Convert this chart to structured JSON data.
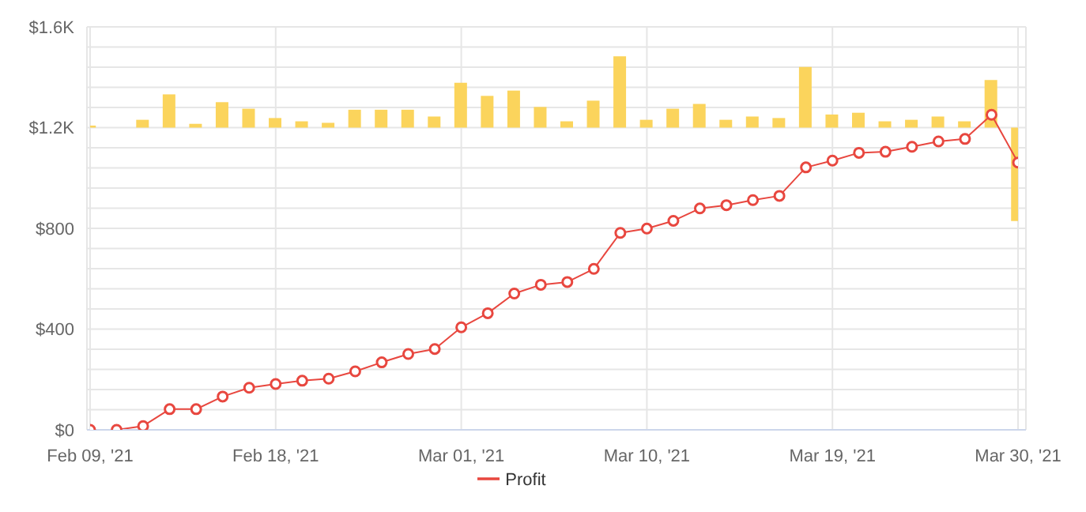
{
  "chart_data": {
    "type": "line",
    "categories": [
      "Feb 09, '21",
      null,
      null,
      null,
      null,
      null,
      null,
      "Feb 18, '21",
      null,
      null,
      null,
      null,
      null,
      null,
      "Mar 01, '21",
      null,
      null,
      null,
      null,
      null,
      null,
      "Mar 10, '21",
      null,
      null,
      null,
      null,
      null,
      null,
      "Mar 19, '21",
      null,
      null,
      null,
      null,
      null,
      null,
      "Mar 30, '21"
    ],
    "series": [
      {
        "type": "bar",
        "color": "#fbd45c",
        "base": [
          1200,
          null,
          1200,
          1200,
          1200,
          1200,
          1200,
          1200,
          1200,
          1200,
          1200,
          1200,
          1200,
          1200,
          1200,
          1200,
          1200,
          1200,
          1200,
          1200,
          1200,
          1200,
          1200,
          1200,
          1200,
          1200,
          1200,
          1200,
          1200,
          1200,
          1200,
          1200,
          1200,
          1200,
          1200,
          1200
        ],
        "values": [
          8,
          null,
          31,
          132,
          15,
          101,
          75,
          38,
          25,
          19,
          71,
          71,
          71,
          44,
          178,
          126,
          147,
          82,
          25,
          107,
          283,
          31,
          75,
          94,
          31,
          44,
          38,
          241,
          52,
          59,
          25,
          31,
          44,
          25,
          189,
          -371
        ]
      },
      {
        "name": "Profit",
        "color": "#e8473f",
        "values": [
          0,
          0,
          15,
          82,
          82,
          132,
          167,
          182,
          195,
          203,
          232,
          268,
          301,
          321,
          407,
          463,
          541,
          576,
          587,
          639,
          782,
          799,
          830,
          879,
          892,
          912,
          929,
          1042,
          1069,
          1100,
          1104,
          1124,
          1145,
          1155,
          1251,
          1061
        ]
      }
    ],
    "ylim": [
      0,
      1600
    ],
    "yticks": [
      {
        "value": 0,
        "label": "$0"
      },
      {
        "value": 80,
        "label": null
      },
      {
        "value": 160,
        "label": null
      },
      {
        "value": 240,
        "label": null
      },
      {
        "value": 320,
        "label": null
      },
      {
        "value": 400,
        "label": "$400"
      },
      {
        "value": 480,
        "label": null
      },
      {
        "value": 560,
        "label": null
      },
      {
        "value": 640,
        "label": null
      },
      {
        "value": 720,
        "label": null
      },
      {
        "value": 800,
        "label": "$800"
      },
      {
        "value": 880,
        "label": null
      },
      {
        "value": 960,
        "label": null
      },
      {
        "value": 1040,
        "label": null
      },
      {
        "value": 1120,
        "label": null
      },
      {
        "value": 1200,
        "label": "$1.2K"
      },
      {
        "value": 1280,
        "label": null
      },
      {
        "value": 1360,
        "label": null
      },
      {
        "value": 1440,
        "label": null
      },
      {
        "value": 1520,
        "label": null
      },
      {
        "value": 1600,
        "label": "$1.6K"
      }
    ],
    "grid": true,
    "legend": "bottom",
    "marker": "circle",
    "line_style": "solid"
  }
}
